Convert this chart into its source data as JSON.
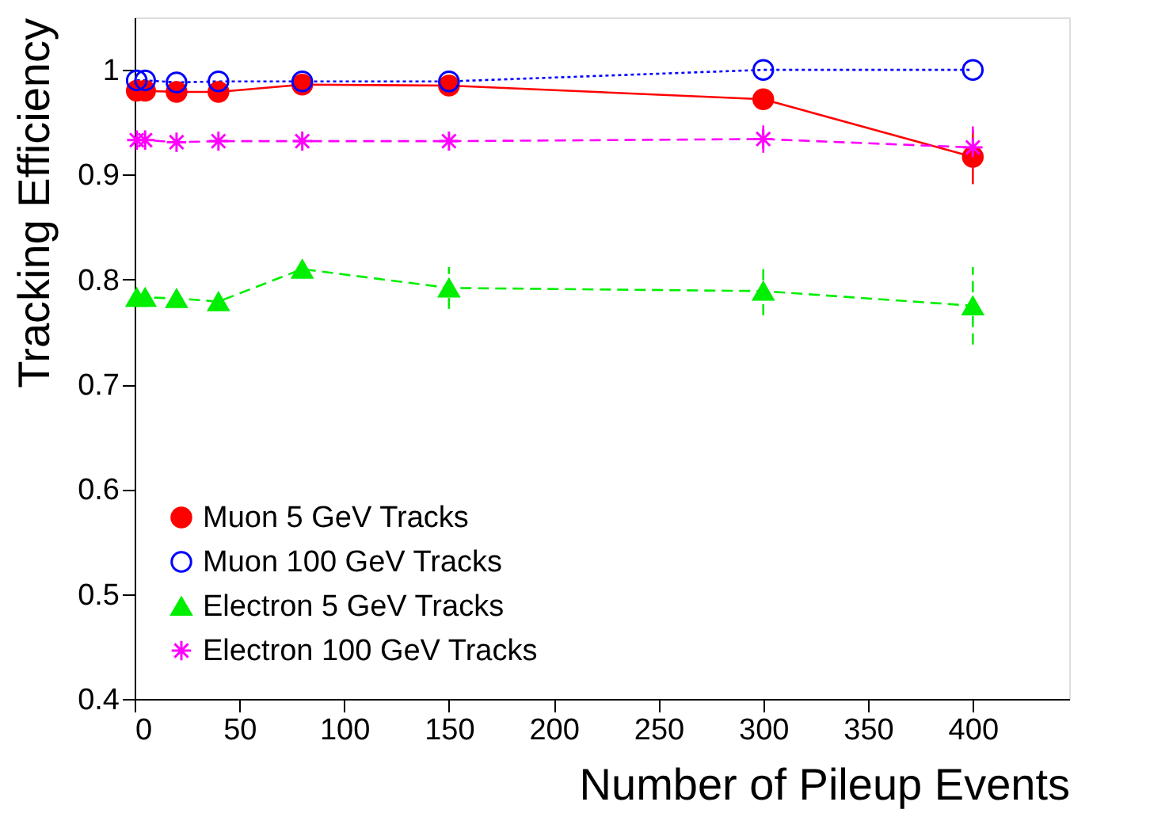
{
  "chart_data": {
    "type": "line",
    "xlabel": "Number of Pileup Events",
    "ylabel": "Tracking Efficiency",
    "x": [
      1,
      5,
      20,
      40,
      80,
      150,
      300,
      400
    ],
    "series": [
      {
        "name": "Muon 5 GeV Tracks",
        "color": "#ff0000",
        "marker": "circle",
        "line_style": "solid",
        "values": [
          0.98,
          0.98,
          0.979,
          0.979,
          0.986,
          0.985,
          0.972,
          0.917
        ],
        "errors": [
          null,
          null,
          null,
          null,
          null,
          null,
          null,
          0.026
        ]
      },
      {
        "name": "Muon 100 GeV Tracks",
        "color": "#0000ff",
        "marker": "circle",
        "line_style": "dotted",
        "values": [
          0.99,
          0.99,
          0.988,
          0.989,
          0.989,
          0.989,
          1.0,
          1.0
        ],
        "errors": [
          null,
          null,
          null,
          null,
          null,
          null,
          null,
          null
        ]
      },
      {
        "name": "Electron 5 GeV Tracks",
        "color": "#00ee00",
        "marker": "triangle",
        "line_style": "dashed",
        "values": [
          0.783,
          0.783,
          0.782,
          0.779,
          0.81,
          0.792,
          0.789,
          0.775
        ],
        "errors": [
          null,
          null,
          null,
          null,
          null,
          0.02,
          0.023,
          0.037
        ]
      },
      {
        "name": "Electron 100 GeV Tracks",
        "color": "#ff00ff",
        "marker": "cross",
        "line_style": "dashed",
        "values": [
          0.933,
          0.933,
          0.931,
          0.932,
          0.932,
          0.932,
          0.934,
          0.926
        ],
        "errors": [
          null,
          null,
          null,
          null,
          null,
          null,
          0.013,
          0.02
        ]
      }
    ],
    "xlim": [
      0,
      446
    ],
    "xticks": [
      0,
      50,
      100,
      150,
      200,
      250,
      300,
      350,
      400
    ],
    "ylim": [
      0.4,
      1.05
    ],
    "yticks": [
      0.4,
      0.5,
      0.6,
      0.7,
      0.8,
      0.9,
      1
    ],
    "grid": false,
    "legend": "bottom left"
  }
}
